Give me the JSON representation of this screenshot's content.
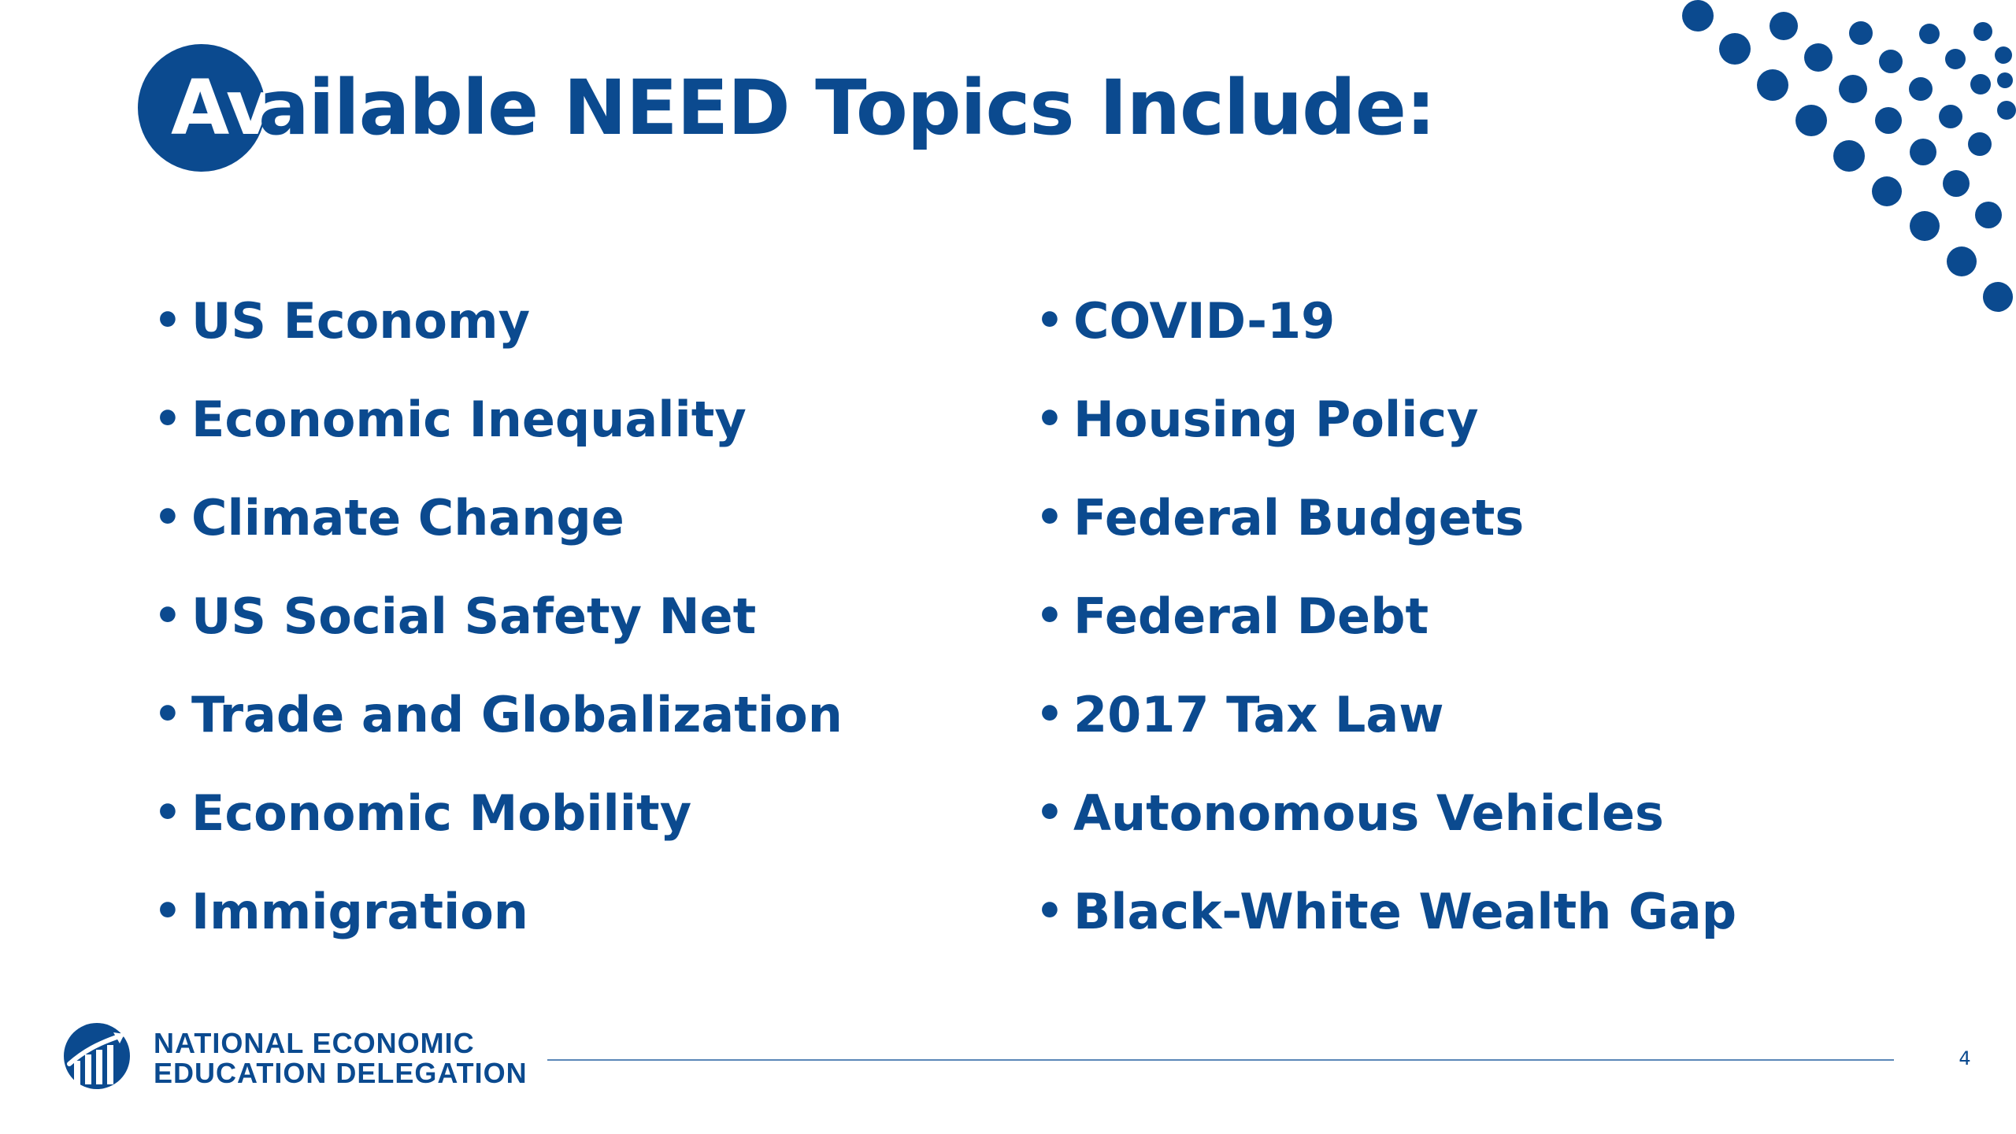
{
  "slide": {
    "title_part_a": "Av",
    "title_part_b": "ailable NEED Topics Include:",
    "bullet_glyph": "•",
    "topics_left": [
      "US Economy",
      "Economic Inequality",
      "Climate Change",
      "US Social Safety Net",
      "Trade and Globalization",
      "Economic Mobility",
      "Immigration"
    ],
    "topics_right": [
      "COVID-19",
      "Housing Policy",
      "Federal Budgets",
      "Federal Debt",
      "2017 Tax Law",
      "Autonomous Vehicles",
      "Black-White Wealth Gap"
    ]
  },
  "footer": {
    "org_line_1": "NATIONAL ECONOMIC",
    "org_line_2": "EDUCATION DELEGATION",
    "logo_icon": "need-logo-icon",
    "page_number": "4"
  },
  "colors": {
    "brand_blue": "#0b4a8f",
    "rule_blue": "#5b87b8",
    "background": "#ffffff"
  }
}
